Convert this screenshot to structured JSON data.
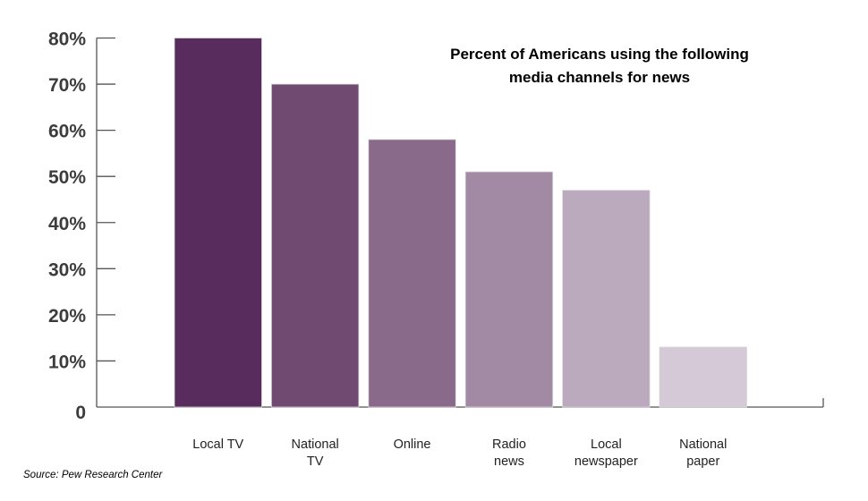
{
  "chart_data": {
    "type": "bar",
    "title_lines": [
      "Percent of Americans using the following",
      "media channels for news"
    ],
    "categories": [
      [
        "Local TV"
      ],
      [
        "National",
        "TV"
      ],
      [
        "Online"
      ],
      [
        "Radio",
        "news"
      ],
      [
        "Local",
        "newspaper"
      ],
      [
        "National",
        "paper"
      ]
    ],
    "values": [
      80,
      70,
      58,
      51,
      47,
      13
    ],
    "colors": [
      "#582c5c",
      "#714a72",
      "#8a6a8a",
      "#a28aa4",
      "#bba9bd",
      "#d5c9d7"
    ],
    "ylim": [
      0,
      80
    ],
    "yticks": [
      "0",
      "10%",
      "20%",
      "30%",
      "40%",
      "50%",
      "60%",
      "70%",
      "80%"
    ],
    "xlabel": "",
    "ylabel": "",
    "grid": false,
    "legend": "none"
  },
  "source": "Source: Pew Research Center"
}
